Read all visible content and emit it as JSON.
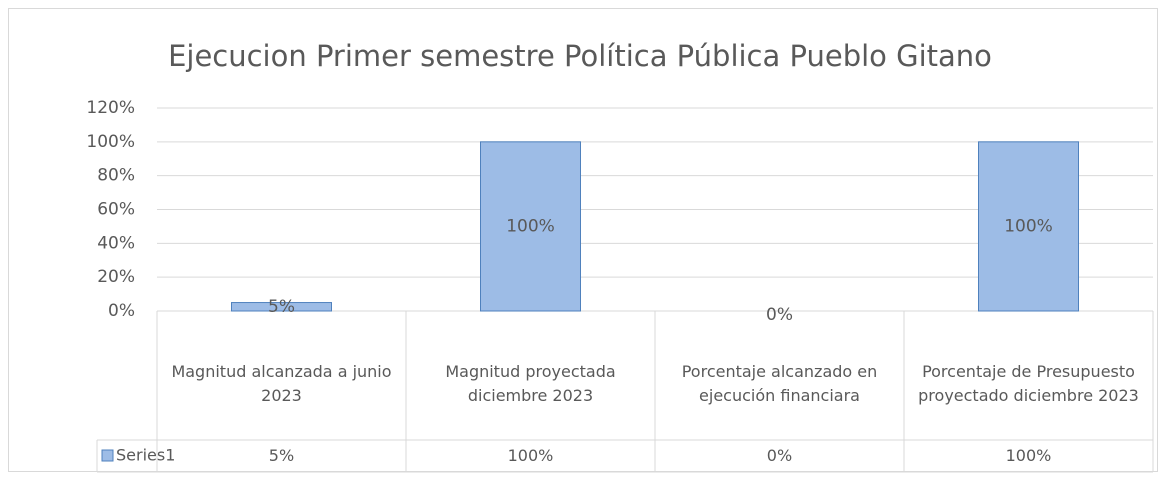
{
  "chart_data": {
    "type": "bar",
    "title": "Ejecucion Primer semestre Política Pública Pueblo Gitano",
    "categories": [
      "Magnitud alcanzada a junio 2023",
      "Magnitud proyectada diciembre 2023",
      "Porcentaje alcanzado en ejecución financiara",
      "Porcentaje de Presupuesto proyectado diciembre 2023"
    ],
    "series": [
      {
        "name": "Series1",
        "color": "#9dbce6",
        "values": [
          5,
          100,
          0,
          100
        ],
        "value_labels": [
          "5%",
          "100%",
          "0%",
          "100%"
        ]
      }
    ],
    "ylim": [
      0,
      120
    ],
    "yticks": [
      {
        "value": 0,
        "label": "0%"
      },
      {
        "value": 20,
        "label": "20%"
      },
      {
        "value": 40,
        "label": "40%"
      },
      {
        "value": 60,
        "label": "60%"
      },
      {
        "value": 80,
        "label": "80%"
      },
      {
        "value": 100,
        "label": "100%"
      },
      {
        "value": 120,
        "label": "120%"
      }
    ],
    "grid": true,
    "data_table": true
  }
}
